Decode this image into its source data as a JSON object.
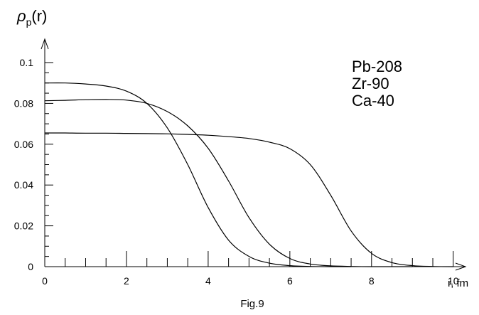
{
  "chart_data": {
    "type": "line",
    "title": "",
    "ylabel_main": "ρ",
    "ylabel_sub": "p",
    "ylabel_tail": "(r)",
    "xlabel": "r, fm",
    "caption": "Fig.9",
    "xlim": [
      0,
      10.3
    ],
    "ylim": [
      0,
      0.1
    ],
    "x_ticks": [
      {
        "value": 0,
        "label": "0"
      },
      {
        "value": 2,
        "label": "2"
      },
      {
        "value": 4,
        "label": "4"
      },
      {
        "value": 6,
        "label": "6"
      },
      {
        "value": 8,
        "label": "8"
      },
      {
        "value": 10,
        "label": "10"
      }
    ],
    "y_ticks": [
      {
        "value": 0,
        "label": "0"
      },
      {
        "value": 0.02,
        "label": "0.02"
      },
      {
        "value": 0.04,
        "label": "0.04"
      },
      {
        "value": 0.06,
        "label": "0.06"
      },
      {
        "value": 0.08,
        "label": "0.08"
      },
      {
        "value": 0.1,
        "label": "0.1"
      }
    ],
    "legend": [
      "Pb-208",
      "Zr-90",
      "Ca-40"
    ],
    "legend_position": "top-right",
    "series": [
      {
        "x": [
          0,
          0.5,
          1,
          1.5,
          2,
          2.5,
          3,
          3.5,
          4,
          4.5,
          5,
          5.5,
          6,
          6.5,
          7,
          7.5,
          8,
          8.5,
          9,
          9.5,
          10
        ],
        "y": [
          0.0655,
          0.0655,
          0.0654,
          0.0654,
          0.0653,
          0.0652,
          0.0651,
          0.0648,
          0.0644,
          0.0637,
          0.0628,
          0.061,
          0.0578,
          0.05,
          0.035,
          0.0175,
          0.0065,
          0.002,
          0.0005,
          0.0001,
          0.0
        ]
      },
      {
        "x": [
          0,
          0.5,
          1,
          1.5,
          2,
          2.5,
          3,
          3.5,
          4,
          4.5,
          5,
          5.5,
          6,
          6.5,
          7,
          7.5,
          8,
          8.5,
          9
        ],
        "y": [
          0.0813,
          0.0815,
          0.0818,
          0.0819,
          0.0816,
          0.08,
          0.076,
          0.069,
          0.058,
          0.042,
          0.024,
          0.011,
          0.004,
          0.0013,
          0.0004,
          0.0001,
          0.0,
          0.0,
          0.0
        ]
      },
      {
        "x": [
          0,
          0.5,
          1,
          1.5,
          2,
          2.5,
          3,
          3.5,
          4,
          4.5,
          5,
          5.5,
          6,
          6.5,
          7,
          7.5
        ],
        "y": [
          0.09,
          0.09,
          0.0895,
          0.0885,
          0.086,
          0.08,
          0.068,
          0.05,
          0.029,
          0.013,
          0.005,
          0.0017,
          0.0005,
          0.0001,
          0.0,
          0.0
        ]
      }
    ],
    "grid": false
  }
}
